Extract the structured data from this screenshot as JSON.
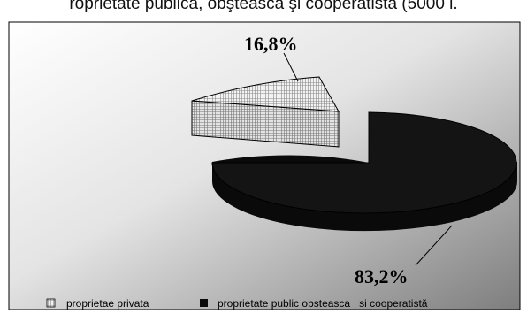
{
  "title_text": "roprietate publica, obştească şi cooperatista (5000 l.",
  "chart_data": {
    "type": "pie",
    "style": "3d-exploded",
    "slices": [
      {
        "label": "proprietae privata",
        "value": 16.8,
        "display": "16,8%",
        "pattern": "grid-hatch",
        "color": "#d6d6d6"
      },
      {
        "label": "proprietate public obsteasca   si cooperatistă",
        "value": 83.2,
        "display": "83,2%",
        "pattern": "solid",
        "color": "#0a0a0a"
      }
    ],
    "legend_position": "bottom",
    "background": "gray-gradient"
  }
}
